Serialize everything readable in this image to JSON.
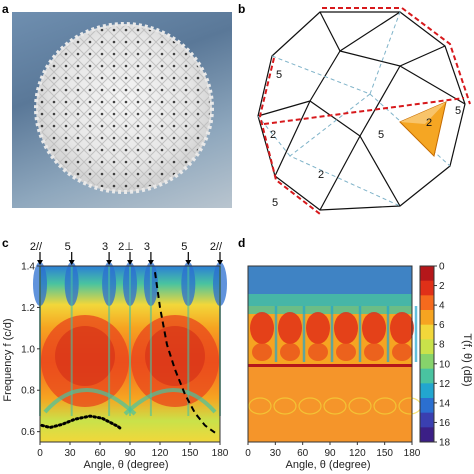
{
  "panels": {
    "a": {
      "letter": "a"
    },
    "b": {
      "letter": "b",
      "vertex_labels": [
        "5",
        "5",
        "5",
        "2",
        "2",
        "2",
        "5"
      ]
    },
    "c": {
      "letter": "c"
    },
    "d": {
      "letter": "d"
    }
  },
  "chart_data": [
    {
      "type": "heatmap",
      "panel": "c",
      "xlabel": "Angle, θ (degree)",
      "ylabel": "Frequency f (c/d)",
      "xlim": [
        0,
        180
      ],
      "ylim": [
        0.55,
        1.4
      ],
      "x_ticks": [
        "0",
        "30",
        "60",
        "90",
        "120",
        "150",
        "180"
      ],
      "y_ticks": [
        "0.6",
        "0.8",
        "1.0",
        "1.2",
        "1.4"
      ],
      "top_markers": [
        {
          "label": "2//",
          "x": 0
        },
        {
          "label": "5",
          "x": 31.7
        },
        {
          "label": "3",
          "x": 69.1
        },
        {
          "label": "2⊥",
          "x": 90
        },
        {
          "label": "3",
          "x": 110.9
        },
        {
          "label": "5",
          "x": 148.3
        },
        {
          "label": "2//",
          "x": 180
        }
      ],
      "dotted_curves": [
        {
          "points": [
            [
              2,
              0.63
            ],
            [
              10,
              0.62
            ],
            [
              22,
              0.635
            ],
            [
              35,
              0.66
            ],
            [
              50,
              0.675
            ],
            [
              62,
              0.665
            ],
            [
              70,
              0.645
            ],
            [
              78,
              0.625
            ],
            [
              82,
              0.61
            ]
          ]
        }
      ],
      "dashed_curve": {
        "points": [
          [
            115,
            1.37
          ],
          [
            120,
            1.2
          ],
          [
            127,
            1.02
          ],
          [
            135,
            0.9
          ],
          [
            145,
            0.78
          ],
          [
            155,
            0.69
          ],
          [
            165,
            0.63
          ],
          [
            175,
            0.595
          ]
        ]
      }
    },
    {
      "type": "heatmap",
      "panel": "d",
      "xlabel": "Angle, θ (degree)",
      "xlim": [
        0,
        180
      ],
      "ylim": [
        0.55,
        1.4
      ],
      "x_ticks": [
        "0",
        "30",
        "60",
        "90",
        "120",
        "150",
        "180"
      ],
      "colorbar": {
        "label": "T(f, θ) (dB)",
        "ticks": [
          "0",
          "2",
          "4",
          "6",
          "8",
          "10",
          "12",
          "14",
          "16",
          "18"
        ],
        "range": [
          0,
          18
        ],
        "colors": [
          "#b5171a",
          "#e03018",
          "#f56a1d",
          "#f6a421",
          "#f2d73a",
          "#c9e24a",
          "#86d36b",
          "#49c3a0",
          "#22a6cf",
          "#2b6fd0",
          "#3a3fb0",
          "#3b1f86"
        ]
      }
    }
  ]
}
